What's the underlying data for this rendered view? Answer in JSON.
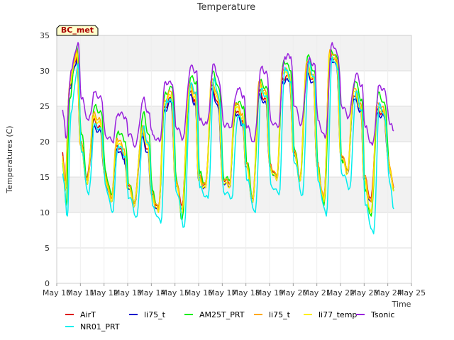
{
  "chart_data": {
    "type": "line",
    "title": "Temperature",
    "xlabel": "Time",
    "ylabel": "Temperatures (C)",
    "badge": "BC_met",
    "xlim": [
      10,
      25
    ],
    "ylim": [
      0,
      35
    ],
    "x_ticks": [
      {
        "value": 10,
        "label": "May 10"
      },
      {
        "value": 11,
        "label": "May 11"
      },
      {
        "value": 12,
        "label": "May 12"
      },
      {
        "value": 13,
        "label": "May 13"
      },
      {
        "value": 14,
        "label": "May 14"
      },
      {
        "value": 15,
        "label": "May 15"
      },
      {
        "value": 16,
        "label": "May 16"
      },
      {
        "value": 17,
        "label": "May 17"
      },
      {
        "value": 18,
        "label": "May 18"
      },
      {
        "value": 19,
        "label": "May 19"
      },
      {
        "value": 20,
        "label": "May 20"
      },
      {
        "value": 21,
        "label": "May 21"
      },
      {
        "value": 22,
        "label": "May 22"
      },
      {
        "value": 23,
        "label": "May 23"
      },
      {
        "value": 24,
        "label": "May 24"
      },
      {
        "value": 25,
        "label": "May 25"
      }
    ],
    "y_ticks": [
      {
        "value": 0,
        "label": "0"
      },
      {
        "value": 5,
        "label": "5"
      },
      {
        "value": 10,
        "label": "10"
      },
      {
        "value": 15,
        "label": "15"
      },
      {
        "value": 20,
        "label": "20"
      },
      {
        "value": 25,
        "label": "25"
      },
      {
        "value": 30,
        "label": "30"
      },
      {
        "value": 35,
        "label": "35"
      }
    ],
    "bands": [
      [
        10,
        15
      ],
      [
        20,
        25
      ],
      [
        30,
        35
      ]
    ],
    "grid": true,
    "legend_position": "bottom",
    "series": [
      {
        "name": "AirT",
        "color": "#dd0000",
        "x": [
          10.25,
          10.35,
          10.55,
          10.85,
          11.0,
          11.3,
          11.55,
          11.85,
          12.0,
          12.3,
          12.55,
          12.85,
          13.0,
          13.3,
          13.6,
          13.85,
          14.0,
          14.3,
          14.55,
          14.85,
          15.0,
          15.3,
          15.6,
          15.85,
          16.0,
          16.3,
          16.55,
          16.85,
          17.0,
          17.3,
          17.55,
          17.85,
          18.0,
          18.3,
          18.55,
          18.85,
          19.0,
          19.3,
          19.55,
          19.85,
          20.0,
          20.3,
          20.55,
          20.85,
          21.0,
          21.3,
          21.55,
          21.85,
          22.0,
          22.3,
          22.55,
          22.85,
          23.0,
          23.3,
          23.55,
          23.85,
          24.0,
          24.25
        ],
        "y": [
          18.5,
          14.5,
          28.0,
          32.0,
          20.0,
          15.0,
          23.0,
          22.0,
          16.0,
          12.0,
          19.5,
          18.0,
          14.0,
          11.5,
          21.0,
          19.0,
          13.0,
          10.5,
          25.0,
          26.0,
          15.0,
          11.0,
          27.0,
          26.0,
          15.0,
          14.0,
          28.0,
          25.0,
          15.0,
          14.0,
          24.5,
          23.0,
          17.0,
          12.0,
          27.0,
          26.0,
          17.0,
          15.0,
          29.0,
          29.0,
          19.0,
          15.0,
          30.0,
          29.0,
          17.0,
          12.0,
          32.5,
          31.0,
          18.5,
          16.0,
          26.5,
          25.0,
          15.0,
          12.0,
          24.5,
          24.0,
          18.0,
          13.5
        ]
      },
      {
        "name": "li75_t",
        "color": "#0000cc",
        "x": [
          10.25,
          10.35,
          10.55,
          10.85,
          11.0,
          11.3,
          11.55,
          11.85,
          12.0,
          12.3,
          12.55,
          12.85,
          13.0,
          13.3,
          13.6,
          13.85,
          14.0,
          14.3,
          14.55,
          14.85,
          15.0,
          15.3,
          15.6,
          15.85,
          16.0,
          16.3,
          16.55,
          16.85,
          17.0,
          17.3,
          17.55,
          17.85,
          18.0,
          18.3,
          18.55,
          18.85,
          19.0,
          19.3,
          19.55,
          19.85,
          20.0,
          20.3,
          20.55,
          20.85,
          21.0,
          21.3,
          21.55,
          21.85,
          22.0,
          22.3,
          22.55,
          22.85,
          23.0,
          23.3,
          23.55,
          23.85,
          24.0,
          24.25
        ],
        "y": [
          17.5,
          13.0,
          27.5,
          31.5,
          19.5,
          14.0,
          22.0,
          21.5,
          15.5,
          11.5,
          19.0,
          17.5,
          13.5,
          11.0,
          20.5,
          18.5,
          12.5,
          10.0,
          24.5,
          25.5,
          14.5,
          10.5,
          26.5,
          25.5,
          14.5,
          13.5,
          27.5,
          24.5,
          14.5,
          13.5,
          24.0,
          22.5,
          16.5,
          11.5,
          26.5,
          25.5,
          16.5,
          14.5,
          28.5,
          28.5,
          18.5,
          14.5,
          29.5,
          28.5,
          16.5,
          11.5,
          32.0,
          30.5,
          18.0,
          15.5,
          26.0,
          24.5,
          14.5,
          11.5,
          24.0,
          23.5,
          17.5,
          13.0
        ]
      },
      {
        "name": "AM25T_PRT",
        "color": "#00ee00",
        "x": [
          10.25,
          10.4,
          10.55,
          10.85,
          11.05,
          11.3,
          11.6,
          11.9,
          12.05,
          12.3,
          12.6,
          12.9,
          13.05,
          13.3,
          13.65,
          13.9,
          14.05,
          14.3,
          14.6,
          14.9,
          15.05,
          15.3,
          15.65,
          15.9,
          16.05,
          16.3,
          16.6,
          16.9,
          17.05,
          17.3,
          17.6,
          17.9,
          18.05,
          18.3,
          18.6,
          18.9,
          19.05,
          19.3,
          19.6,
          19.9,
          20.05,
          20.3,
          20.6,
          20.9,
          21.05,
          21.3,
          21.6,
          21.9,
          22.05,
          22.3,
          22.6,
          22.9,
          23.05,
          23.3,
          23.6,
          23.9,
          24.05,
          24.25
        ],
        "y": [
          17.0,
          11.0,
          26.0,
          33.5,
          21.0,
          14.5,
          25.0,
          24.0,
          16.0,
          12.5,
          21.5,
          20.0,
          14.0,
          11.5,
          24.0,
          21.0,
          13.0,
          10.5,
          27.0,
          27.5,
          15.0,
          9.0,
          29.0,
          28.5,
          15.5,
          14.0,
          30.0,
          27.0,
          15.0,
          14.5,
          25.5,
          25.0,
          17.0,
          12.0,
          28.5,
          27.5,
          16.0,
          15.0,
          31.5,
          30.0,
          19.0,
          14.5,
          32.0,
          30.0,
          16.5,
          11.0,
          33.0,
          31.5,
          17.5,
          16.0,
          28.5,
          26.0,
          13.0,
          9.5,
          27.0,
          25.0,
          17.0,
          13.0
        ]
      },
      {
        "name": "li75_t",
        "color": "#ffaa00",
        "x": [
          10.25,
          10.35,
          10.55,
          10.85,
          11.0,
          11.3,
          11.55,
          11.85,
          12.0,
          12.3,
          12.55,
          12.85,
          13.0,
          13.3,
          13.6,
          13.85,
          14.0,
          14.3,
          14.55,
          14.85,
          15.0,
          15.3,
          15.6,
          15.85,
          16.0,
          16.3,
          16.55,
          16.85,
          17.0,
          17.3,
          17.55,
          17.85,
          18.0,
          18.3,
          18.55,
          18.85,
          19.0,
          19.3,
          19.55,
          19.85,
          20.0,
          20.3,
          20.55,
          20.85,
          21.0,
          21.3,
          21.55,
          21.85,
          22.0,
          22.3,
          22.55,
          22.85,
          23.0,
          23.3,
          23.55,
          23.85,
          24.0,
          24.25
        ],
        "y": [
          18.0,
          13.5,
          28.5,
          33.0,
          20.0,
          14.5,
          24.0,
          23.0,
          16.0,
          12.0,
          20.5,
          19.0,
          14.0,
          11.5,
          22.0,
          20.0,
          13.0,
          10.5,
          26.0,
          27.0,
          15.0,
          10.5,
          28.0,
          27.0,
          15.0,
          14.0,
          29.0,
          26.0,
          15.0,
          14.0,
          25.5,
          24.0,
          17.0,
          12.0,
          28.5,
          27.0,
          17.0,
          15.0,
          30.5,
          29.5,
          19.0,
          15.0,
          31.0,
          29.5,
          17.0,
          12.0,
          33.0,
          31.5,
          18.5,
          16.0,
          27.5,
          25.5,
          15.0,
          11.5,
          25.5,
          24.5,
          18.0,
          13.5
        ]
      },
      {
        "name": "li77_temp",
        "color": "#ffee00",
        "x": [
          10.25,
          10.35,
          10.55,
          10.85,
          11.0,
          11.3,
          11.55,
          11.85,
          12.0,
          12.3,
          12.55,
          12.85,
          13.0,
          13.3,
          13.6,
          13.85,
          14.0,
          14.3,
          14.55,
          14.85,
          15.0,
          15.3,
          15.6,
          15.85,
          16.0,
          16.3,
          16.55,
          16.85,
          17.0,
          17.3,
          17.55,
          17.85,
          18.0,
          18.3,
          18.55,
          18.85,
          19.0,
          19.3,
          19.55,
          19.85,
          20.0,
          20.3,
          20.55,
          20.85,
          21.0,
          21.3,
          21.55,
          21.85,
          22.0,
          22.3,
          22.55,
          22.85,
          23.0,
          23.3,
          23.55,
          23.85,
          24.0,
          24.25
        ],
        "y": [
          17.5,
          13.0,
          28.0,
          32.5,
          19.5,
          14.0,
          23.5,
          22.5,
          15.5,
          11.5,
          20.0,
          18.5,
          13.5,
          11.0,
          21.5,
          19.5,
          12.5,
          10.0,
          25.5,
          26.5,
          14.5,
          10.0,
          27.5,
          26.5,
          14.5,
          13.5,
          28.5,
          25.5,
          14.5,
          13.5,
          25.0,
          23.5,
          16.5,
          11.5,
          28.0,
          26.5,
          16.5,
          14.5,
          30.0,
          29.0,
          18.5,
          14.5,
          30.5,
          29.0,
          16.5,
          11.5,
          32.5,
          31.0,
          18.0,
          15.5,
          27.0,
          25.0,
          14.5,
          10.0,
          25.0,
          24.0,
          17.5,
          13.0
        ]
      },
      {
        "name": "Tsonic",
        "color": "#9922dd",
        "x": [
          10.25,
          10.4,
          10.6,
          10.9,
          11.05,
          11.35,
          11.6,
          11.9,
          12.05,
          12.35,
          12.6,
          12.9,
          13.05,
          13.35,
          13.65,
          13.9,
          14.05,
          14.35,
          14.6,
          14.9,
          15.05,
          15.35,
          15.65,
          15.9,
          16.05,
          16.35,
          16.65,
          16.9,
          17.05,
          17.35,
          17.65,
          17.9,
          18.05,
          18.35,
          18.65,
          18.9,
          19.05,
          19.35,
          19.65,
          19.9,
          20.05,
          20.35,
          20.65,
          20.9,
          21.05,
          21.35,
          21.65,
          21.9,
          22.05,
          22.35,
          22.65,
          22.9,
          23.05,
          23.35,
          23.65,
          23.9,
          24.05,
          24.25
        ],
        "y": [
          24.5,
          20.5,
          30.0,
          34.0,
          26.0,
          23.0,
          27.0,
          26.0,
          21.0,
          20.0,
          24.0,
          23.5,
          21.0,
          19.5,
          26.0,
          24.0,
          21.0,
          20.0,
          28.5,
          28.0,
          22.0,
          20.5,
          30.5,
          30.0,
          23.0,
          22.5,
          31.0,
          28.0,
          22.5,
          22.0,
          27.5,
          26.5,
          22.0,
          20.0,
          30.5,
          29.5,
          23.0,
          22.0,
          32.0,
          32.0,
          25.0,
          22.5,
          31.5,
          31.0,
          23.0,
          20.5,
          34.0,
          32.0,
          25.0,
          23.5,
          29.5,
          28.0,
          22.0,
          19.5,
          28.0,
          27.0,
          23.0,
          21.5
        ]
      },
      {
        "name": "NR01_PRT",
        "color": "#00eeee",
        "x": [
          10.25,
          10.45,
          10.6,
          10.9,
          11.05,
          11.35,
          11.6,
          11.9,
          12.05,
          12.35,
          12.6,
          12.9,
          13.05,
          13.4,
          13.65,
          13.9,
          14.05,
          14.4,
          14.65,
          14.9,
          15.05,
          15.4,
          15.65,
          15.9,
          16.05,
          16.4,
          16.65,
          16.9,
          17.05,
          17.4,
          17.65,
          17.9,
          18.05,
          18.4,
          18.65,
          18.9,
          19.05,
          19.4,
          19.65,
          19.9,
          20.05,
          20.4,
          20.65,
          20.9,
          21.05,
          21.4,
          21.65,
          21.9,
          22.05,
          22.4,
          22.65,
          22.9,
          23.05,
          23.4,
          23.65,
          23.9,
          24.05,
          24.25
        ],
        "y": [
          15.5,
          9.5,
          24.0,
          31.0,
          18.5,
          12.5,
          22.5,
          21.5,
          14.0,
          10.0,
          19.5,
          18.0,
          12.0,
          9.5,
          22.0,
          19.5,
          11.0,
          8.5,
          26.0,
          25.5,
          13.0,
          8.0,
          28.0,
          27.0,
          13.5,
          12.0,
          29.0,
          25.5,
          13.0,
          12.0,
          23.5,
          22.5,
          14.5,
          10.0,
          27.5,
          26.0,
          14.0,
          12.5,
          30.5,
          28.5,
          17.0,
          12.5,
          31.0,
          29.0,
          14.5,
          9.5,
          32.0,
          30.0,
          15.5,
          13.5,
          27.0,
          24.5,
          11.0,
          7.0,
          25.5,
          23.0,
          15.0,
          10.5
        ]
      }
    ]
  }
}
